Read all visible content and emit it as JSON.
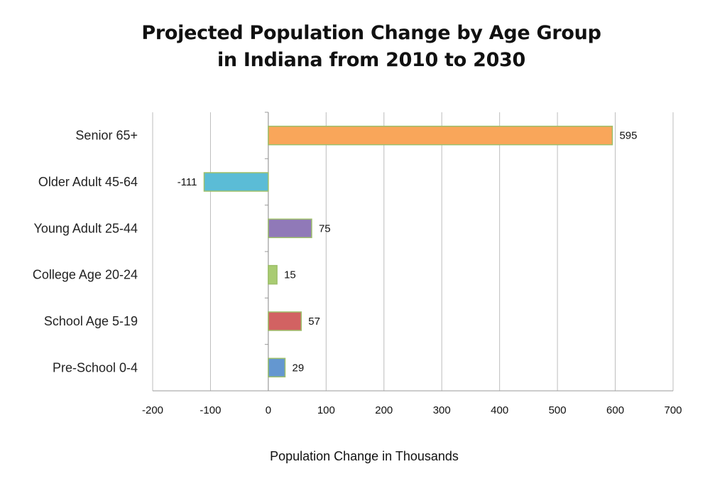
{
  "chart_data": {
    "type": "bar",
    "orientation": "horizontal",
    "title_lines": [
      "Projected Population Change by Age Group",
      "in Indiana from 2010 to 2030"
    ],
    "xlabel": "Population Change in Thousands",
    "ylabel": "",
    "xlim": [
      -200,
      700
    ],
    "x_ticks": [
      -200,
      -100,
      0,
      100,
      200,
      300,
      400,
      500,
      600,
      700
    ],
    "grid": true,
    "legend": "none",
    "categories": [
      "Senior  65+",
      "Older Adult  45-64",
      "Young Adult  25-44",
      "College Age  20-24",
      "School Age  5-19",
      "Pre-School  0-4"
    ],
    "values": [
      595,
      -111,
      75,
      15,
      57,
      29
    ],
    "value_labels": [
      "595",
      "-111",
      "75",
      "15",
      "57",
      "29"
    ],
    "colors": [
      "#F9A65A",
      "#5BBCD6",
      "#9079B8",
      "#A9CC72",
      "#D26262",
      "#6497D0"
    ],
    "bar_border_color": "#9DBF6A"
  }
}
